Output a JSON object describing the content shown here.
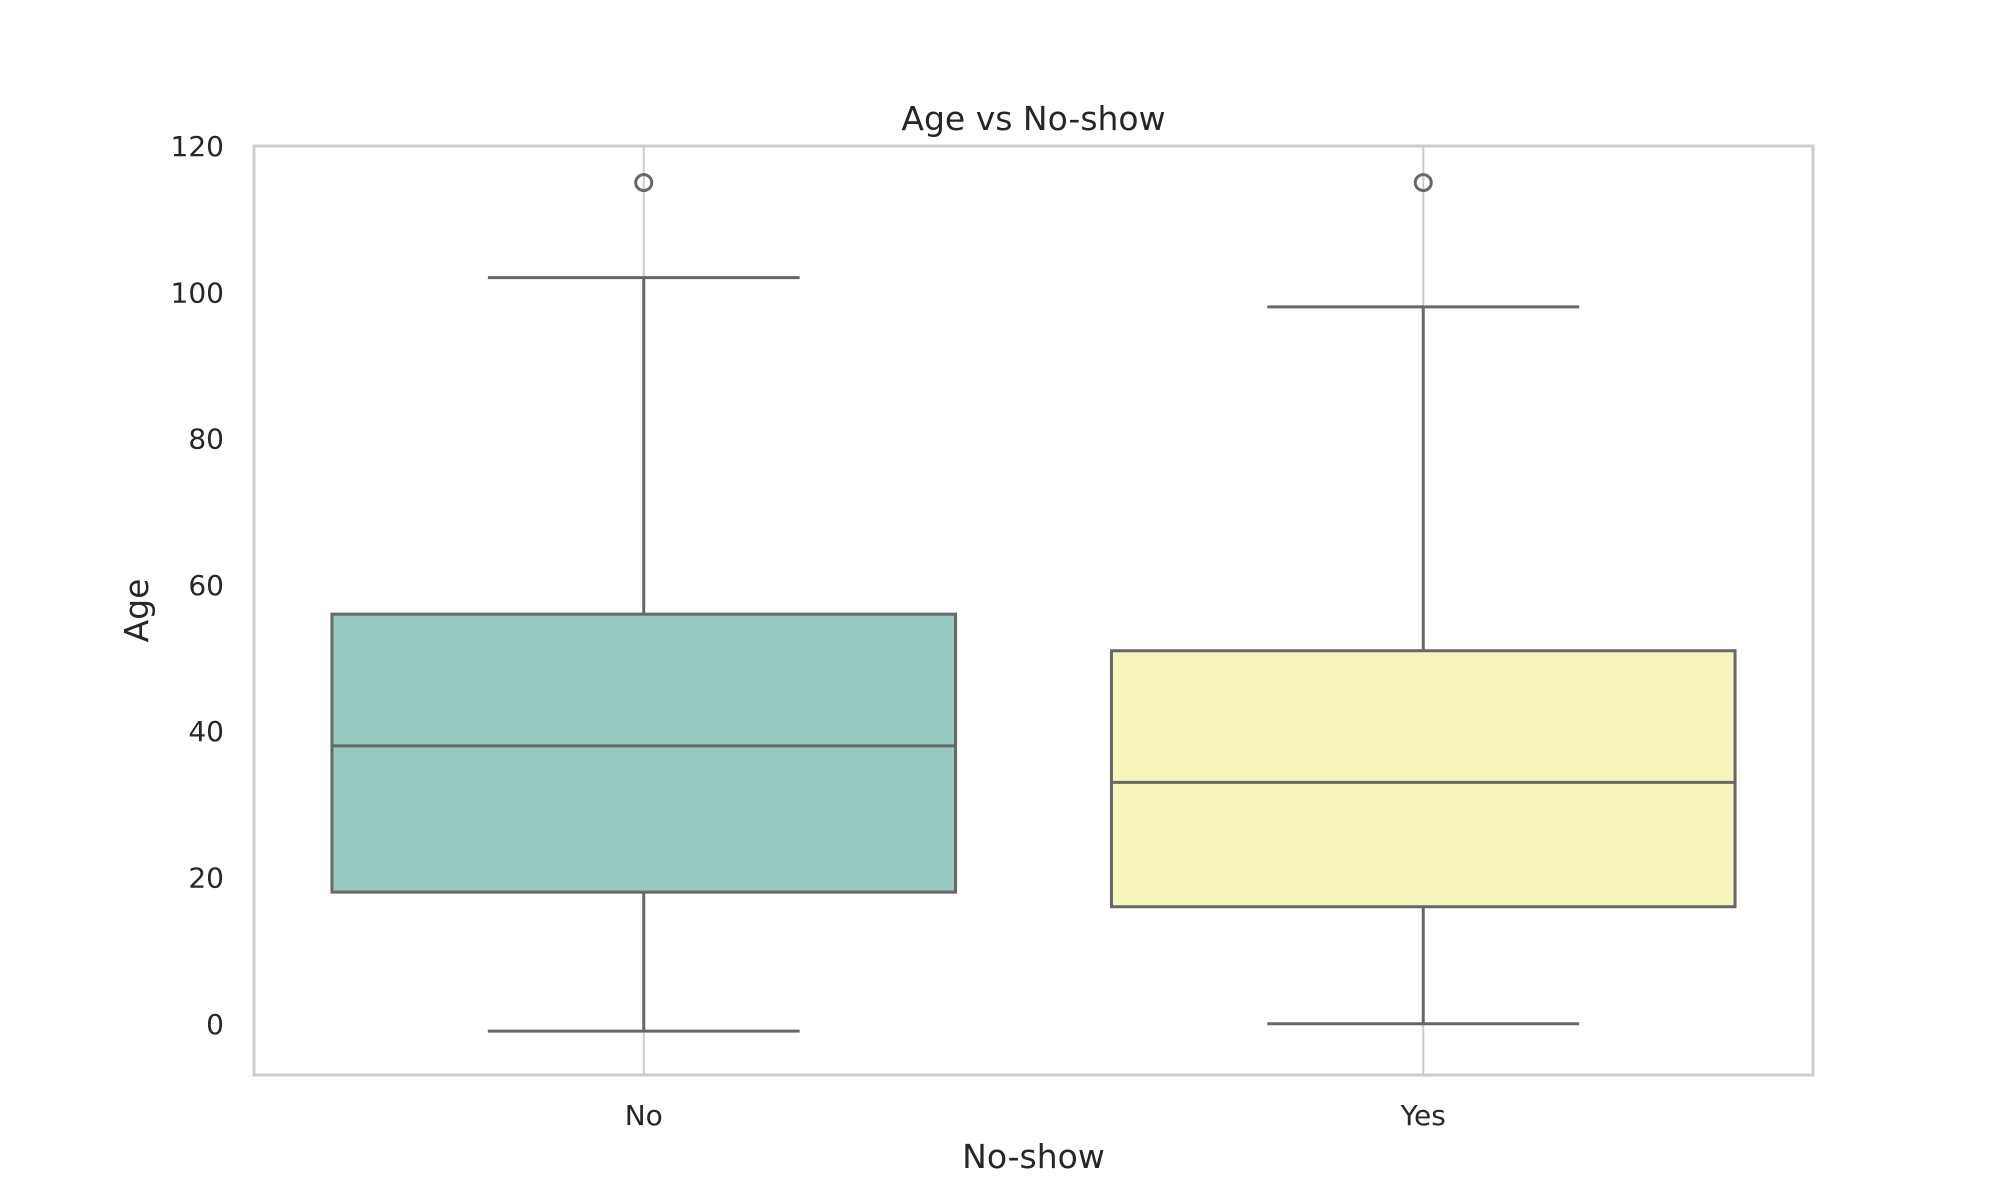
{
  "chart_data": {
    "type": "box",
    "title": "Age vs No-show",
    "xlabel": "No-show",
    "ylabel": "Age",
    "ylim": [
      -7,
      120
    ],
    "yticks": [
      0,
      20,
      40,
      60,
      80,
      100,
      120
    ],
    "grid": "vertical",
    "categories": [
      "No",
      "Yes"
    ],
    "boxes": [
      {
        "category": "No",
        "whisker_low": -1,
        "q1": 18,
        "median": 38,
        "q3": 56,
        "whisker_high": 102,
        "outliers": [
          115
        ],
        "color": "#98cac1"
      },
      {
        "category": "Yes",
        "whisker_low": 0,
        "q1": 16,
        "median": 33,
        "q3": 51,
        "whisker_high": 98,
        "outliers": [
          115
        ],
        "color": "#f6f5bc"
      }
    ],
    "line_color": "#676767",
    "frame_color": "#cccccc"
  }
}
